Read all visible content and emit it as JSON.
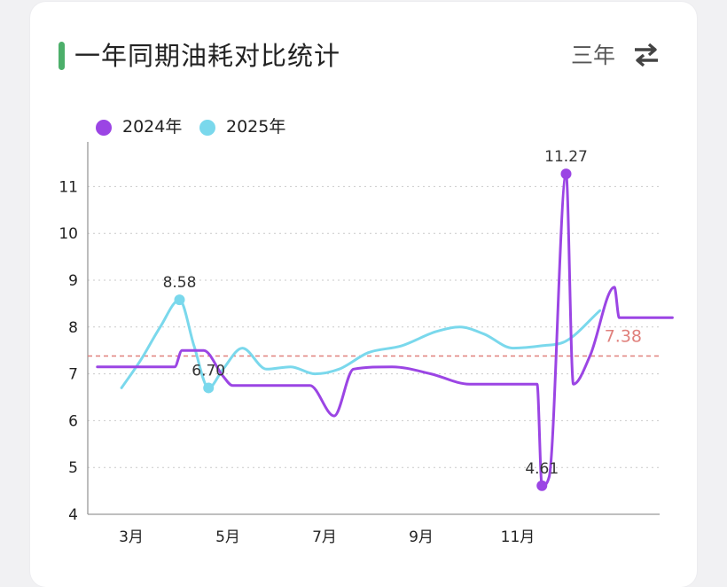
{
  "header": {
    "title": "一年同期油耗对比统计",
    "range_label": "三年",
    "swap_icon": "swap-arrows-icon"
  },
  "colors": {
    "accent": "#4caf6a",
    "series_2024": "#9b45e4",
    "series_2025": "#7ad8ec",
    "average": "#e0807c"
  },
  "chart_data": {
    "type": "line",
    "title": "一年同期油耗对比统计",
    "ylim": [
      4,
      11.8
    ],
    "yticks": [
      4,
      5,
      6,
      7,
      8,
      9,
      10,
      11
    ],
    "xlim": [
      2.3,
      14.2
    ],
    "xticks": [
      {
        "x": 3,
        "label": "3月"
      },
      {
        "x": 5,
        "label": "5月"
      },
      {
        "x": 7,
        "label": "7月"
      },
      {
        "x": 9,
        "label": "9月"
      },
      {
        "x": 11,
        "label": "11月"
      }
    ],
    "grid": "horizontal-dotted",
    "legend_position": "top-left",
    "average": {
      "value": 7.38,
      "label": "7.38"
    },
    "series": [
      {
        "name": "2024年",
        "color": "#9b45e4",
        "points": [
          [
            2.3,
            7.15
          ],
          [
            3.6,
            7.15
          ],
          [
            3.9,
            7.15
          ],
          [
            4.05,
            7.5
          ],
          [
            4.5,
            7.5
          ],
          [
            4.9,
            6.95
          ],
          [
            5.1,
            6.75
          ],
          [
            6.2,
            6.75
          ],
          [
            6.7,
            6.75
          ],
          [
            7.2,
            6.1
          ],
          [
            7.6,
            7.1
          ],
          [
            8.4,
            7.15
          ],
          [
            9.2,
            7.0
          ],
          [
            10.0,
            6.78
          ],
          [
            11.0,
            6.78
          ],
          [
            11.4,
            6.78
          ],
          [
            11.5,
            4.61
          ],
          [
            11.65,
            4.8
          ],
          [
            12.0,
            11.27
          ],
          [
            12.15,
            6.78
          ],
          [
            12.5,
            7.4
          ],
          [
            13.0,
            8.85
          ],
          [
            13.1,
            8.2
          ],
          [
            14.2,
            8.2
          ]
        ],
        "markers": [
          {
            "x": 11.5,
            "y": 4.61,
            "label": "4.61"
          },
          {
            "x": 12.0,
            "y": 11.27,
            "label": "11.27"
          }
        ]
      },
      {
        "name": "2025年",
        "color": "#7ad8ec",
        "points": [
          [
            2.8,
            6.7
          ],
          [
            3.2,
            7.3
          ],
          [
            3.6,
            8.0
          ],
          [
            4.0,
            8.58
          ],
          [
            4.3,
            7.6
          ],
          [
            4.6,
            6.7
          ],
          [
            4.9,
            7.1
          ],
          [
            5.3,
            7.55
          ],
          [
            5.8,
            7.1
          ],
          [
            6.3,
            7.15
          ],
          [
            6.8,
            7.0
          ],
          [
            7.3,
            7.1
          ],
          [
            7.9,
            7.45
          ],
          [
            8.6,
            7.6
          ],
          [
            9.3,
            7.9
          ],
          [
            9.8,
            8.0
          ],
          [
            10.3,
            7.85
          ],
          [
            10.9,
            7.55
          ],
          [
            11.5,
            7.6
          ],
          [
            12.0,
            7.7
          ],
          [
            12.7,
            8.35
          ]
        ],
        "markers": [
          {
            "x": 4.0,
            "y": 8.58,
            "label": "8.58"
          },
          {
            "x": 4.6,
            "y": 6.7,
            "label": "6.70"
          }
        ]
      }
    ]
  }
}
